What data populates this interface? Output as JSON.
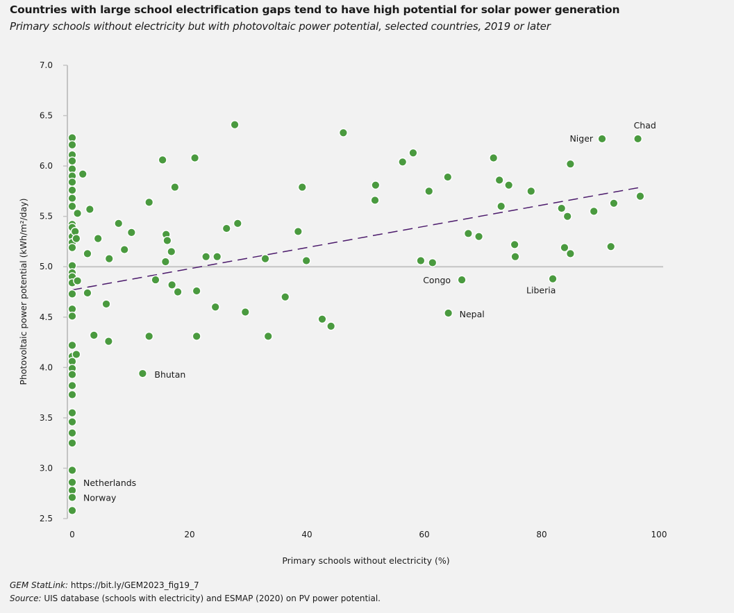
{
  "title": "Countries with large school electrification gaps tend to have high potential for solar power generation",
  "subtitle": "Primary schools without electricity but with photovoltaic power potential, selected countries, 2019 or later",
  "footer": {
    "statlink_label": "GEM StatLink:",
    "statlink_url": "https://bit.ly/GEM2023_fig19_7",
    "source_label": "Source:",
    "source_text": "UIS database (schools with electricity) and ESMAP (2020) on PV power potential."
  },
  "colors": {
    "points": "#4a9a3f",
    "trend": "#4b1a6b",
    "reference_line": "#c4c4c4",
    "background": "#f2f2f2"
  },
  "chart_data": {
    "type": "scatter",
    "xlabel": "Primary schools without electricity (%)",
    "ylabel": "Photovoltaic power potential (kWh/m²/day)",
    "xlim": [
      0,
      100
    ],
    "ylim": [
      2.5,
      7.0
    ],
    "xticks": [
      "0",
      "20",
      "40",
      "60",
      "80",
      "100"
    ],
    "yticks": [
      "2.5",
      "3.0",
      "3.5",
      "4.0",
      "4.5",
      "5.0",
      "5.5",
      "6.0",
      "6.5",
      "7.0"
    ],
    "reference_line_y": 5.0,
    "trend_line": {
      "style": "dashed",
      "points": [
        [
          0,
          4.77
        ],
        [
          97,
          5.79
        ]
      ]
    },
    "labels": [
      {
        "text": "Netherlands",
        "x": 0,
        "y": 2.86
      },
      {
        "text": "Norway",
        "x": 0,
        "y": 2.71
      },
      {
        "text": "Bhutan",
        "x": 12.0,
        "y": 3.94
      },
      {
        "text": "Congo",
        "x": 66.4,
        "y": 4.87
      },
      {
        "text": "Nepal",
        "x": 64.1,
        "y": 4.54
      },
      {
        "text": "Liberia",
        "x": 81.9,
        "y": 4.88
      },
      {
        "text": "Niger",
        "x": 90.3,
        "y": 6.27
      },
      {
        "text": "Chad",
        "x": 96.4,
        "y": 6.27
      }
    ],
    "points": [
      [
        0,
        6.28
      ],
      [
        0,
        6.21
      ],
      [
        0,
        6.11
      ],
      [
        0,
        6.05
      ],
      [
        0,
        5.97
      ],
      [
        0,
        5.9
      ],
      [
        0,
        5.84
      ],
      [
        0,
        5.76
      ],
      [
        0,
        5.68
      ],
      [
        0,
        5.6
      ],
      [
        0,
        5.42
      ],
      [
        0,
        5.39
      ],
      [
        0,
        5.3
      ],
      [
        0,
        5.24
      ],
      [
        0,
        5.19
      ],
      [
        0,
        5.01
      ],
      [
        0,
        4.94
      ],
      [
        0,
        4.9
      ],
      [
        0,
        4.84
      ],
      [
        0,
        4.73
      ],
      [
        0,
        4.58
      ],
      [
        0,
        4.51
      ],
      [
        0,
        4.22
      ],
      [
        0,
        4.11
      ],
      [
        0,
        4.06
      ],
      [
        0,
        3.99
      ],
      [
        0,
        3.93
      ],
      [
        0,
        3.82
      ],
      [
        0,
        3.73
      ],
      [
        0,
        3.55
      ],
      [
        0,
        3.46
      ],
      [
        0,
        3.35
      ],
      [
        0,
        3.25
      ],
      [
        0,
        2.98
      ],
      [
        0,
        2.86
      ],
      [
        0,
        2.78
      ],
      [
        0,
        2.71
      ],
      [
        0,
        2.58
      ],
      [
        1.8,
        5.92
      ],
      [
        0.9,
        5.53
      ],
      [
        2.6,
        5.13
      ],
      [
        3.0,
        5.57
      ],
      [
        0.5,
        5.35
      ],
      [
        0.7,
        5.28
      ],
      [
        0.9,
        4.86
      ],
      [
        2.6,
        4.74
      ],
      [
        0.7,
        4.13
      ],
      [
        4.4,
        5.28
      ],
      [
        3.7,
        4.32
      ],
      [
        5.8,
        4.63
      ],
      [
        6.3,
        5.08
      ],
      [
        6.2,
        4.26
      ],
      [
        7.9,
        5.43
      ],
      [
        8.9,
        5.17
      ],
      [
        10.1,
        5.34
      ],
      [
        12.0,
        3.94
      ],
      [
        13.1,
        5.64
      ],
      [
        13.1,
        4.31
      ],
      [
        14.2,
        4.87
      ],
      [
        15.4,
        6.06
      ],
      [
        16.0,
        5.32
      ],
      [
        16.2,
        5.26
      ],
      [
        15.9,
        5.05
      ],
      [
        16.9,
        5.15
      ],
      [
        17.5,
        5.79
      ],
      [
        17.0,
        4.82
      ],
      [
        18.0,
        4.75
      ],
      [
        20.9,
        6.08
      ],
      [
        21.2,
        4.76
      ],
      [
        21.2,
        4.31
      ],
      [
        22.8,
        5.1
      ],
      [
        24.4,
        4.6
      ],
      [
        24.7,
        5.1
      ],
      [
        26.3,
        5.38
      ],
      [
        27.7,
        6.41
      ],
      [
        28.2,
        5.43
      ],
      [
        29.5,
        4.55
      ],
      [
        32.9,
        5.08
      ],
      [
        33.4,
        4.31
      ],
      [
        36.3,
        4.7
      ],
      [
        38.5,
        5.35
      ],
      [
        39.2,
        5.79
      ],
      [
        39.9,
        5.06
      ],
      [
        42.6,
        4.48
      ],
      [
        44.1,
        4.41
      ],
      [
        46.2,
        6.33
      ],
      [
        51.6,
        5.66
      ],
      [
        51.7,
        5.81
      ],
      [
        56.3,
        6.04
      ],
      [
        58.1,
        6.13
      ],
      [
        59.4,
        5.06
      ],
      [
        60.8,
        5.75
      ],
      [
        61.4,
        5.04
      ],
      [
        64.0,
        5.89
      ],
      [
        64.1,
        4.54
      ],
      [
        66.4,
        4.87
      ],
      [
        67.5,
        5.33
      ],
      [
        69.3,
        5.3
      ],
      [
        71.8,
        6.08
      ],
      [
        72.8,
        5.86
      ],
      [
        73.1,
        5.6
      ],
      [
        74.4,
        5.81
      ],
      [
        75.4,
        5.22
      ],
      [
        75.5,
        5.1
      ],
      [
        78.2,
        5.75
      ],
      [
        81.9,
        4.88
      ],
      [
        83.4,
        5.58
      ],
      [
        83.9,
        5.19
      ],
      [
        84.4,
        5.5
      ],
      [
        84.9,
        6.02
      ],
      [
        84.9,
        5.13
      ],
      [
        88.9,
        5.55
      ],
      [
        90.3,
        6.27
      ],
      [
        91.8,
        5.2
      ],
      [
        92.3,
        5.63
      ],
      [
        96.4,
        6.27
      ],
      [
        96.8,
        5.7
      ]
    ]
  }
}
